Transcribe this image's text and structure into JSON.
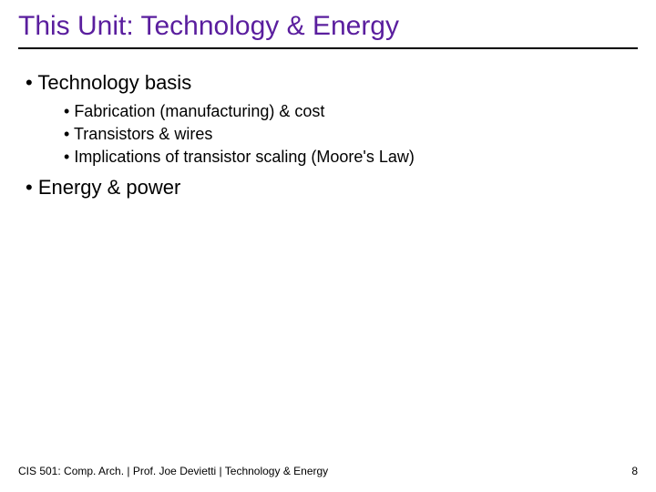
{
  "title": {
    "text": "This Unit: Technology & Energy",
    "color": "#5a1e9e",
    "fontsize": 30
  },
  "bullets": {
    "l1_fontsize": 22,
    "l2_fontsize": 18,
    "items": [
      {
        "label": "Technology basis",
        "children": [
          {
            "label": "Fabrication (manufacturing) & cost"
          },
          {
            "label": "Transistors & wires"
          },
          {
            "label": "Implications of transistor scaling (Moore's Law)"
          }
        ]
      },
      {
        "label": "Energy & power",
        "children": []
      }
    ]
  },
  "footer": {
    "text": "CIS 501: Comp. Arch.   |   Prof. Joe Devietti   |   Technology & Energy",
    "page": "8",
    "fontsize": 12
  },
  "colors": {
    "background": "#ffffff",
    "text": "#000000",
    "rule": "#000000"
  }
}
